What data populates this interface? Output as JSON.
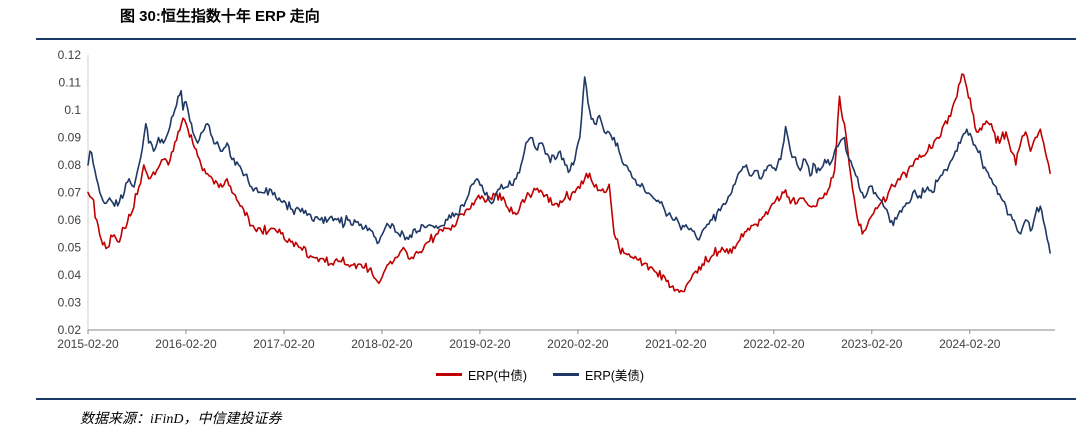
{
  "title": "图 30:恒生指数十年 ERP 走向",
  "source_note": "数据来源：iFinD，中信建投证券",
  "colors": {
    "rule": "#1b3866",
    "series_cn_bond": "#c00000",
    "series_us_bond": "#1f3864",
    "axis": "#8a8a8a",
    "tick_text": "#3f3f3f"
  },
  "chart_data": {
    "type": "line",
    "title": "图 30:恒生指数十年 ERP 走向",
    "xlabel": "",
    "ylabel": "",
    "grid": false,
    "legend_position": "bottom",
    "xlim": [
      2015.13,
      2025.0
    ],
    "ylim": [
      0.02,
      0.12
    ],
    "y_ticks": [
      0.02,
      0.03,
      0.04,
      0.05,
      0.06,
      0.07,
      0.08,
      0.09,
      0.1,
      0.11,
      0.12
    ],
    "y_tick_labels": [
      "0.02",
      "0.03",
      "0.04",
      "0.05",
      "0.06",
      "0.07",
      "0.08",
      "0.09",
      "0.1",
      "0.11",
      "0.12"
    ],
    "x_tick_values": [
      2015.13,
      2016.13,
      2017.13,
      2018.13,
      2019.13,
      2020.13,
      2021.13,
      2022.13,
      2023.13,
      2024.13
    ],
    "x_tick_labels": [
      "2015-02-20",
      "2016-02-20",
      "2017-02-20",
      "2018-02-20",
      "2019-02-20",
      "2020-02-20",
      "2021-02-20",
      "2022-02-20",
      "2023-02-20",
      "2024-02-20"
    ],
    "series": [
      {
        "name": "ERP(中债)",
        "color": "#c00000",
        "x": [
          2015.13,
          2015.17,
          2015.22,
          2015.28,
          2015.33,
          2015.38,
          2015.45,
          2015.5,
          2015.58,
          2015.65,
          2015.7,
          2015.75,
          2015.83,
          2015.9,
          2015.95,
          2016.0,
          2016.05,
          2016.1,
          2016.15,
          2016.2,
          2016.3,
          2016.4,
          2016.5,
          2016.55,
          2016.6,
          2016.7,
          2016.8,
          2016.9,
          2017.0,
          2017.1,
          2017.2,
          2017.3,
          2017.4,
          2017.5,
          2017.6,
          2017.7,
          2017.8,
          2017.9,
          2018.0,
          2018.05,
          2018.1,
          2018.15,
          2018.2,
          2018.3,
          2018.35,
          2018.4,
          2018.5,
          2018.6,
          2018.7,
          2018.8,
          2018.9,
          2019.0,
          2019.1,
          2019.2,
          2019.3,
          2019.4,
          2019.5,
          2019.6,
          2019.7,
          2019.8,
          2019.9,
          2020.0,
          2020.1,
          2020.2,
          2020.25,
          2020.3,
          2020.4,
          2020.45,
          2020.5,
          2020.55,
          2020.6,
          2020.7,
          2020.8,
          2020.9,
          2021.0,
          2021.05,
          2021.1,
          2021.2,
          2021.25,
          2021.3,
          2021.4,
          2021.5,
          2021.6,
          2021.7,
          2021.8,
          2021.9,
          2022.0,
          2022.05,
          2022.1,
          2022.2,
          2022.25,
          2022.3,
          2022.4,
          2022.5,
          2022.6,
          2022.7,
          2022.75,
          2022.8,
          2022.85,
          2022.9,
          2022.95,
          2023.0,
          2023.05,
          2023.1,
          2023.2,
          2023.3,
          2023.4,
          2023.5,
          2023.6,
          2023.7,
          2023.8,
          2023.9,
          2024.0,
          2024.05,
          2024.1,
          2024.15,
          2024.2,
          2024.3,
          2024.35,
          2024.4,
          2024.5,
          2024.55,
          2024.6,
          2024.65,
          2024.7,
          2024.75,
          2024.8,
          2024.85,
          2024.9,
          2024.95
        ],
        "y": [
          0.07,
          0.068,
          0.06,
          0.051,
          0.05,
          0.054,
          0.052,
          0.057,
          0.063,
          0.072,
          0.08,
          0.075,
          0.078,
          0.082,
          0.08,
          0.085,
          0.092,
          0.097,
          0.093,
          0.088,
          0.078,
          0.075,
          0.072,
          0.075,
          0.07,
          0.065,
          0.058,
          0.056,
          0.057,
          0.055,
          0.052,
          0.05,
          0.047,
          0.046,
          0.044,
          0.045,
          0.043,
          0.044,
          0.042,
          0.039,
          0.037,
          0.041,
          0.044,
          0.047,
          0.05,
          0.046,
          0.048,
          0.052,
          0.055,
          0.057,
          0.06,
          0.064,
          0.068,
          0.067,
          0.07,
          0.065,
          0.062,
          0.068,
          0.071,
          0.069,
          0.066,
          0.068,
          0.07,
          0.075,
          0.077,
          0.072,
          0.07,
          0.073,
          0.055,
          0.05,
          0.048,
          0.046,
          0.044,
          0.042,
          0.04,
          0.038,
          0.036,
          0.034,
          0.037,
          0.04,
          0.044,
          0.047,
          0.05,
          0.048,
          0.055,
          0.058,
          0.06,
          0.063,
          0.065,
          0.068,
          0.071,
          0.066,
          0.068,
          0.065,
          0.068,
          0.072,
          0.078,
          0.105,
          0.095,
          0.08,
          0.068,
          0.058,
          0.056,
          0.06,
          0.065,
          0.07,
          0.075,
          0.078,
          0.082,
          0.085,
          0.09,
          0.095,
          0.105,
          0.113,
          0.108,
          0.1,
          0.092,
          0.096,
          0.095,
          0.088,
          0.092,
          0.085,
          0.08,
          0.088,
          0.092,
          0.085,
          0.09,
          0.093,
          0.085,
          0.077
        ]
      },
      {
        "name": "ERP(美债)",
        "color": "#1f3864",
        "x": [
          2015.13,
          2015.15,
          2015.2,
          2015.25,
          2015.3,
          2015.35,
          2015.4,
          2015.5,
          2015.55,
          2015.6,
          2015.65,
          2015.7,
          2015.72,
          2015.75,
          2015.8,
          2015.85,
          2015.9,
          2015.95,
          2016.0,
          2016.05,
          2016.08,
          2016.1,
          2016.13,
          2016.17,
          2016.2,
          2016.25,
          2016.3,
          2016.35,
          2016.4,
          2016.5,
          2016.55,
          2016.6,
          2016.7,
          2016.8,
          2016.9,
          2017.0,
          2017.05,
          2017.13,
          2017.2,
          2017.3,
          2017.4,
          2017.5,
          2017.6,
          2017.7,
          2017.8,
          2017.9,
          2018.0,
          2018.05,
          2018.1,
          2018.15,
          2018.2,
          2018.3,
          2018.4,
          2018.5,
          2018.6,
          2018.7,
          2018.8,
          2018.9,
          2019.0,
          2019.05,
          2019.1,
          2019.2,
          2019.25,
          2019.3,
          2019.4,
          2019.5,
          2019.55,
          2019.6,
          2019.65,
          2019.7,
          2019.75,
          2019.8,
          2019.9,
          2019.95,
          2020.0,
          2020.05,
          2020.1,
          2020.15,
          2020.2,
          2020.25,
          2020.3,
          2020.35,
          2020.4,
          2020.5,
          2020.55,
          2020.6,
          2020.65,
          2020.7,
          2020.8,
          2020.9,
          2021.0,
          2021.05,
          2021.1,
          2021.2,
          2021.3,
          2021.35,
          2021.4,
          2021.5,
          2021.6,
          2021.7,
          2021.75,
          2021.8,
          2021.85,
          2021.9,
          2021.95,
          2022.0,
          2022.05,
          2022.1,
          2022.15,
          2022.2,
          2022.25,
          2022.3,
          2022.4,
          2022.45,
          2022.5,
          2022.55,
          2022.6,
          2022.65,
          2022.7,
          2022.75,
          2022.8,
          2022.85,
          2022.9,
          2022.95,
          2023.0,
          2023.05,
          2023.1,
          2023.2,
          2023.25,
          2023.3,
          2023.35,
          2023.4,
          2023.5,
          2023.55,
          2023.6,
          2023.7,
          2023.75,
          2023.8,
          2023.9,
          2023.95,
          2024.0,
          2024.05,
          2024.1,
          2024.15,
          2024.2,
          2024.25,
          2024.3,
          2024.35,
          2024.4,
          2024.45,
          2024.5,
          2024.55,
          2024.6,
          2024.65,
          2024.7,
          2024.75,
          2024.8,
          2024.85,
          2024.88,
          2024.92,
          2024.95
        ],
        "y": [
          0.08,
          0.085,
          0.078,
          0.07,
          0.066,
          0.068,
          0.065,
          0.07,
          0.075,
          0.072,
          0.08,
          0.09,
          0.095,
          0.088,
          0.085,
          0.09,
          0.088,
          0.092,
          0.098,
          0.105,
          0.107,
          0.1,
          0.103,
          0.096,
          0.092,
          0.088,
          0.092,
          0.095,
          0.09,
          0.085,
          0.088,
          0.082,
          0.078,
          0.072,
          0.07,
          0.071,
          0.068,
          0.067,
          0.064,
          0.063,
          0.062,
          0.06,
          0.061,
          0.059,
          0.06,
          0.058,
          0.057,
          0.054,
          0.052,
          0.056,
          0.058,
          0.055,
          0.053,
          0.056,
          0.058,
          0.057,
          0.06,
          0.062,
          0.068,
          0.073,
          0.075,
          0.07,
          0.066,
          0.07,
          0.072,
          0.075,
          0.08,
          0.088,
          0.09,
          0.086,
          0.088,
          0.084,
          0.082,
          0.085,
          0.08,
          0.078,
          0.082,
          0.09,
          0.112,
          0.1,
          0.095,
          0.098,
          0.092,
          0.09,
          0.085,
          0.08,
          0.078,
          0.075,
          0.072,
          0.068,
          0.065,
          0.062,
          0.06,
          0.058,
          0.056,
          0.053,
          0.056,
          0.06,
          0.065,
          0.07,
          0.075,
          0.078,
          0.08,
          0.076,
          0.078,
          0.075,
          0.078,
          0.08,
          0.078,
          0.082,
          0.094,
          0.085,
          0.078,
          0.082,
          0.076,
          0.08,
          0.078,
          0.082,
          0.08,
          0.085,
          0.088,
          0.09,
          0.082,
          0.078,
          0.072,
          0.068,
          0.072,
          0.068,
          0.065,
          0.062,
          0.058,
          0.062,
          0.066,
          0.07,
          0.068,
          0.072,
          0.07,
          0.074,
          0.078,
          0.082,
          0.085,
          0.09,
          0.093,
          0.09,
          0.086,
          0.082,
          0.078,
          0.075,
          0.072,
          0.068,
          0.065,
          0.062,
          0.058,
          0.055,
          0.06,
          0.056,
          0.062,
          0.065,
          0.06,
          0.053,
          0.048
        ]
      }
    ]
  }
}
